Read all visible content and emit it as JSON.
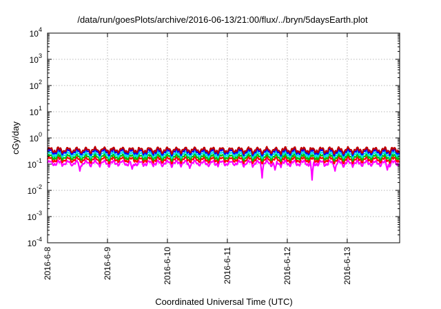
{
  "chart_data": {
    "type": "line",
    "title": "/data/run/goesPlots/archive/2016-06-13/21:00/flux/../bryn/5daysEarth.plot",
    "xlabel": "Coordinated Universal Time (UTC)",
    "ylabel": "cGy/day",
    "yscale": "log",
    "ylim": [
      0.0001,
      10000
    ],
    "xlim": [
      "2016-06-08",
      "2016-06-13T21:00"
    ],
    "grid": true,
    "x_ticks": [
      "2016-6-8",
      "2016-6-9",
      "2016-6-10",
      "2016-6-11",
      "2016-6-12",
      "2016-6-13"
    ],
    "y_ticks": [
      {
        "base": "10",
        "exp": "-4",
        "value": 0.0001
      },
      {
        "base": "10",
        "exp": "-3",
        "value": 0.001
      },
      {
        "base": "10",
        "exp": "-2",
        "value": 0.01
      },
      {
        "base": "10",
        "exp": "-1",
        "value": 0.1
      },
      {
        "base": "10",
        "exp": "0",
        "value": 1
      },
      {
        "base": "10",
        "exp": "1",
        "value": 10
      },
      {
        "base": "10",
        "exp": "2",
        "value": 100
      },
      {
        "base": "10",
        "exp": "3",
        "value": 1000
      },
      {
        "base": "10",
        "exp": "4",
        "value": 10000
      }
    ],
    "series": [
      {
        "color": "#ff00ff",
        "baseline": 0.11,
        "dips": [
          {
            "date": "2016-06-08T13:00",
            "value": 0.055
          },
          {
            "date": "2016-06-09T10:00",
            "value": 0.065
          },
          {
            "date": "2016-06-10T09:00",
            "value": 0.07
          },
          {
            "date": "2016-06-11T14:00",
            "value": 0.03
          },
          {
            "date": "2016-06-11T19:00",
            "value": 0.06
          },
          {
            "date": "2016-06-12T10:00",
            "value": 0.025
          },
          {
            "date": "2016-06-12T19:00",
            "value": 0.055
          },
          {
            "date": "2016-06-13T16:00",
            "value": 0.06
          }
        ]
      },
      {
        "color": "#ff0000",
        "baseline": 0.15
      },
      {
        "color": "#00c000",
        "baseline": 0.19
      },
      {
        "color": "#00e0e0",
        "baseline": 0.24
      },
      {
        "color": "#0000ff",
        "baseline": 0.3
      },
      {
        "color": "#c00000",
        "baseline": 0.35
      }
    ]
  }
}
